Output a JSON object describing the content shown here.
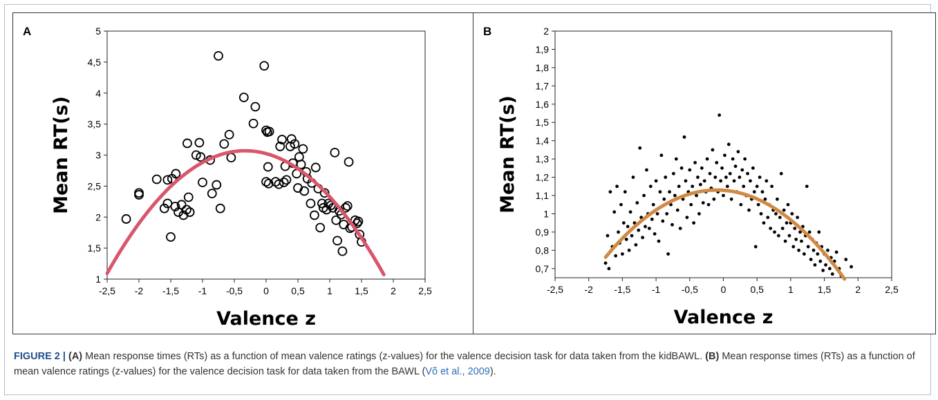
{
  "figure": {
    "caption": {
      "label": "FIGURE 2 |",
      "ref_a": "(A)",
      "text_a": " Mean response times (RTs) as a function of mean valence ratings (z-values) for the valence decision task for data taken from the kidBAWL. ",
      "ref_b": "(B)",
      "text_b": " Mean response times (RTs) as a function of mean valence ratings (z-values) for the valence decision task for data taken from the BAWL (",
      "citation": "Võ et al., 2009",
      "text_end": ")."
    }
  },
  "chart_data": [
    {
      "panel": "A",
      "type": "scatter",
      "marker": "open-circle",
      "xlabel": "Valence z",
      "ylabel": "Mean RT(s)",
      "xlim": [
        -2.5,
        2.5
      ],
      "ylim": [
        1,
        5
      ],
      "x_ticks": [
        "-2,5",
        "-2",
        "-1,5",
        "-1",
        "-0,5",
        "0",
        "0,5",
        "1",
        "1,5",
        "2",
        "2,5"
      ],
      "y_ticks": [
        "1",
        "1,5",
        "2",
        "2,5",
        "3",
        "3,5",
        "4",
        "4,5",
        "5"
      ],
      "fit_color": "#d9566a",
      "fit": {
        "type": "quadratic",
        "vertex_x": -0.33,
        "vertex_y": 3.07,
        "curvature": -0.42,
        "x_range": [
          -2.5,
          1.85
        ]
      },
      "points": [
        [
          -2.2,
          1.97
        ],
        [
          -2.0,
          2.39
        ],
        [
          -2.0,
          2.36
        ],
        [
          -1.72,
          2.61
        ],
        [
          -1.6,
          2.14
        ],
        [
          -1.55,
          2.6
        ],
        [
          -1.55,
          2.22
        ],
        [
          -1.5,
          1.68
        ],
        [
          -1.48,
          2.62
        ],
        [
          -1.43,
          2.17
        ],
        [
          -1.42,
          2.7
        ],
        [
          -1.38,
          2.08
        ],
        [
          -1.33,
          2.2
        ],
        [
          -1.3,
          2.03
        ],
        [
          -1.25,
          2.12
        ],
        [
          -1.24,
          3.19
        ],
        [
          -1.22,
          2.32
        ],
        [
          -1.2,
          2.08
        ],
        [
          -1.1,
          3.0
        ],
        [
          -1.05,
          3.2
        ],
        [
          -1.03,
          2.97
        ],
        [
          -1.0,
          2.56
        ],
        [
          -0.88,
          2.92
        ],
        [
          -0.85,
          2.38
        ],
        [
          -0.78,
          2.52
        ],
        [
          -0.75,
          4.6
        ],
        [
          -0.72,
          2.14
        ],
        [
          -0.66,
          3.18
        ],
        [
          -0.58,
          3.33
        ],
        [
          -0.55,
          2.96
        ],
        [
          -0.35,
          3.93
        ],
        [
          -0.2,
          3.51
        ],
        [
          -0.17,
          3.78
        ],
        [
          -0.03,
          4.44
        ],
        [
          0.0,
          3.4
        ],
        [
          0.02,
          3.37
        ],
        [
          0.05,
          3.38
        ],
        [
          0.0,
          2.57
        ],
        [
          0.03,
          2.81
        ],
        [
          0.04,
          2.54
        ],
        [
          0.15,
          2.57
        ],
        [
          0.2,
          2.53
        ],
        [
          0.22,
          3.14
        ],
        [
          0.25,
          3.25
        ],
        [
          0.28,
          2.56
        ],
        [
          0.3,
          2.82
        ],
        [
          0.32,
          2.6
        ],
        [
          0.38,
          3.14
        ],
        [
          0.4,
          3.26
        ],
        [
          0.42,
          2.87
        ],
        [
          0.45,
          3.18
        ],
        [
          0.48,
          2.7
        ],
        [
          0.5,
          2.47
        ],
        [
          0.52,
          2.97
        ],
        [
          0.55,
          2.85
        ],
        [
          0.58,
          3.1
        ],
        [
          0.6,
          2.42
        ],
        [
          0.63,
          2.73
        ],
        [
          0.65,
          2.62
        ],
        [
          0.7,
          2.22
        ],
        [
          0.72,
          2.55
        ],
        [
          0.76,
          2.03
        ],
        [
          0.78,
          2.8
        ],
        [
          0.82,
          2.46
        ],
        [
          0.85,
          1.83
        ],
        [
          0.88,
          2.22
        ],
        [
          0.9,
          2.15
        ],
        [
          0.92,
          2.39
        ],
        [
          0.95,
          2.12
        ],
        [
          0.98,
          2.22
        ],
        [
          1.02,
          2.19
        ],
        [
          1.05,
          2.15
        ],
        [
          1.08,
          3.04
        ],
        [
          1.1,
          1.95
        ],
        [
          1.12,
          1.62
        ],
        [
          1.15,
          2.1
        ],
        [
          1.18,
          2.04
        ],
        [
          1.2,
          1.45
        ],
        [
          1.22,
          1.88
        ],
        [
          1.25,
          2.15
        ],
        [
          1.28,
          2.18
        ],
        [
          1.3,
          2.89
        ],
        [
          1.32,
          1.82
        ],
        [
          1.35,
          1.84
        ],
        [
          1.4,
          1.95
        ],
        [
          1.43,
          1.9
        ],
        [
          1.45,
          1.93
        ],
        [
          1.47,
          1.72
        ],
        [
          1.5,
          1.6
        ]
      ]
    },
    {
      "panel": "B",
      "type": "scatter",
      "marker": "filled-dot",
      "xlabel": "Valence z",
      "ylabel": "Mean RT(s)",
      "xlim": [
        -2.5,
        2.5
      ],
      "ylim": [
        0.65,
        2
      ],
      "x_ticks": [
        "-2,5",
        "-2",
        "-1,5",
        "-1",
        "-0,5",
        "0",
        "0,5",
        "1",
        "1,5",
        "2",
        "2,5"
      ],
      "y_ticks": [
        "0,7",
        "0,8",
        "0,9",
        "1",
        "1,1",
        "1,2",
        "1,3",
        "1,4",
        "1,5",
        "1,6",
        "1,7",
        "1,8",
        "1,9",
        "2"
      ],
      "fit_color": "#d08a45",
      "fit": {
        "type": "quadratic",
        "vertex_x": -0.1,
        "vertex_y": 1.13,
        "curvature": -0.135,
        "x_range": [
          -1.75,
          1.8
        ]
      },
      "points": [
        [
          -1.75,
          0.73
        ],
        [
          -1.72,
          0.88
        ],
        [
          -1.7,
          0.7
        ],
        [
          -1.68,
          1.12
        ],
        [
          -1.65,
          0.82
        ],
        [
          -1.62,
          1.01
        ],
        [
          -1.6,
          0.77
        ],
        [
          -1.58,
          1.15
        ],
        [
          -1.56,
          0.9
        ],
        [
          -1.54,
          0.84
        ],
        [
          -1.52,
          1.05
        ],
        [
          -1.5,
          0.78
        ],
        [
          -1.48,
          0.95
        ],
        [
          -1.46,
          1.12
        ],
        [
          -1.44,
          0.86
        ],
        [
          -1.42,
          0.93
        ],
        [
          -1.4,
          0.8
        ],
        [
          -1.38,
          1.01
        ],
        [
          -1.36,
          0.88
        ],
        [
          -1.34,
          1.2
        ],
        [
          -1.32,
          0.95
        ],
        [
          -1.3,
          0.83
        ],
        [
          -1.28,
          1.06
        ],
        [
          -1.26,
          0.91
        ],
        [
          -1.24,
          1.36
        ],
        [
          -1.22,
          0.98
        ],
        [
          -1.2,
          0.87
        ],
        [
          -1.18,
          1.1
        ],
        [
          -1.16,
          0.93
        ],
        [
          -1.14,
          1.24
        ],
        [
          -1.12,
          1.0
        ],
        [
          -1.1,
          0.92
        ],
        [
          -1.08,
          1.15
        ],
        [
          -1.06,
          0.97
        ],
        [
          -1.04,
          1.05
        ],
        [
          -1.02,
          0.89
        ],
        [
          -1.0,
          1.18
        ],
        [
          -0.98,
          1.0
        ],
        [
          -0.96,
          0.85
        ],
        [
          -0.94,
          1.12
        ],
        [
          -0.92,
          1.32
        ],
        [
          -0.9,
          0.96
        ],
        [
          -0.88,
          1.08
        ],
        [
          -0.86,
          1.2
        ],
        [
          -0.84,
          1.0
        ],
        [
          -0.82,
          0.78
        ],
        [
          -0.8,
          1.12
        ],
        [
          -0.78,
          1.05
        ],
        [
          -0.76,
          0.94
        ],
        [
          -0.74,
          1.22
        ],
        [
          -0.72,
          1.1
        ],
        [
          -0.7,
          1.3
        ],
        [
          -0.68,
          1.02
        ],
        [
          -0.66,
          1.15
        ],
        [
          -0.64,
          0.92
        ],
        [
          -0.62,
          1.25
        ],
        [
          -0.6,
          1.08
        ],
        [
          -0.58,
          1.42
        ],
        [
          -0.56,
          1.18
        ],
        [
          -0.54,
          0.98
        ],
        [
          -0.52,
          1.12
        ],
        [
          -0.5,
          1.24
        ],
        [
          -0.48,
          1.05
        ],
        [
          -0.46,
          1.15
        ],
        [
          -0.44,
          0.95
        ],
        [
          -0.42,
          1.28
        ],
        [
          -0.4,
          1.1
        ],
        [
          -0.38,
          1.2
        ],
        [
          -0.36,
          1.0
        ],
        [
          -0.34,
          1.16
        ],
        [
          -0.32,
          1.25
        ],
        [
          -0.3,
          1.06
        ],
        [
          -0.28,
          1.18
        ],
        [
          -0.26,
          1.12
        ],
        [
          -0.24,
          1.3
        ],
        [
          -0.22,
          1.05
        ],
        [
          -0.2,
          1.22
        ],
        [
          -0.18,
          1.14
        ],
        [
          -0.16,
          1.35
        ],
        [
          -0.14,
          1.08
        ],
        [
          -0.12,
          1.2
        ],
        [
          -0.1,
          1.28
        ],
        [
          -0.08,
          1.12
        ],
        [
          -0.06,
          1.54
        ],
        [
          -0.04,
          1.18
        ],
        [
          -0.02,
          1.25
        ],
        [
          0.0,
          1.1
        ],
        [
          0.02,
          1.32
        ],
        [
          0.04,
          1.2
        ],
        [
          0.06,
          1.15
        ],
        [
          0.08,
          1.38
        ],
        [
          0.1,
          1.22
        ],
        [
          0.12,
          1.08
        ],
        [
          0.14,
          1.3
        ],
        [
          0.16,
          1.18
        ],
        [
          0.18,
          1.26
        ],
        [
          0.2,
          1.12
        ],
        [
          0.22,
          1.34
        ],
        [
          0.24,
          1.2
        ],
        [
          0.26,
          1.05
        ],
        [
          0.28,
          1.24
        ],
        [
          0.3,
          1.15
        ],
        [
          0.32,
          1.3
        ],
        [
          0.34,
          1.1
        ],
        [
          0.36,
          1.22
        ],
        [
          0.38,
          1.02
        ],
        [
          0.4,
          1.18
        ],
        [
          0.42,
          1.08
        ],
        [
          0.44,
          1.25
        ],
        [
          0.46,
          1.12
        ],
        [
          0.48,
          0.82
        ],
        [
          0.5,
          1.15
        ],
        [
          0.52,
          1.05
        ],
        [
          0.54,
          1.2
        ],
        [
          0.56,
          1.0
        ],
        [
          0.58,
          1.12
        ],
        [
          0.6,
          0.95
        ],
        [
          0.62,
          1.08
        ],
        [
          0.64,
          1.18
        ],
        [
          0.66,
          0.98
        ],
        [
          0.68,
          1.05
        ],
        [
          0.7,
          0.92
        ],
        [
          0.72,
          1.15
        ],
        [
          0.74,
          1.02
        ],
        [
          0.76,
          0.9
        ],
        [
          0.78,
          1.0
        ],
        [
          0.8,
          1.08
        ],
        [
          0.82,
          0.88
        ],
        [
          0.84,
          0.98
        ],
        [
          0.86,
          1.22
        ],
        [
          0.88,
          0.92
        ],
        [
          0.9,
          1.02
        ],
        [
          0.92,
          0.85
        ],
        [
          0.94,
          0.95
        ],
        [
          0.96,
          1.05
        ],
        [
          0.98,
          0.88
        ],
        [
          1.0,
          0.95
        ],
        [
          1.02,
          1.0
        ],
        [
          1.04,
          0.82
        ],
        [
          1.06,
          0.92
        ],
        [
          1.08,
          0.86
        ],
        [
          1.1,
          0.98
        ],
        [
          1.12,
          0.8
        ],
        [
          1.14,
          0.9
        ],
        [
          1.16,
          0.85
        ],
        [
          1.18,
          0.93
        ],
        [
          1.2,
          0.78
        ],
        [
          1.22,
          0.88
        ],
        [
          1.24,
          1.15
        ],
        [
          1.26,
          0.82
        ],
        [
          1.28,
          0.9
        ],
        [
          1.3,
          0.75
        ],
        [
          1.32,
          0.86
        ],
        [
          1.34,
          0.8
        ],
        [
          1.36,
          0.72
        ],
        [
          1.38,
          0.84
        ],
        [
          1.4,
          0.78
        ],
        [
          1.42,
          0.9
        ],
        [
          1.44,
          0.74
        ],
        [
          1.46,
          0.82
        ],
        [
          1.48,
          0.69
        ],
        [
          1.5,
          0.78
        ],
        [
          1.52,
          0.72
        ],
        [
          1.55,
          0.8
        ],
        [
          1.58,
          0.7
        ],
        [
          1.6,
          0.76
        ],
        [
          1.62,
          0.67
        ],
        [
          1.65,
          0.74
        ],
        [
          1.68,
          0.79
        ],
        [
          1.72,
          0.7
        ],
        [
          1.75,
          0.66
        ],
        [
          1.82,
          0.75
        ],
        [
          1.9,
          0.71
        ]
      ]
    }
  ]
}
